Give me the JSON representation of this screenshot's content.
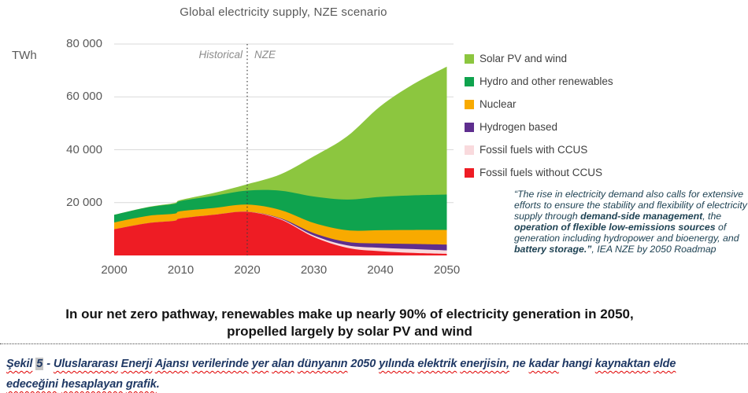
{
  "chart_data": {
    "type": "area",
    "stacked": true,
    "title": "Global electricity supply, NZE scenario",
    "y_unit_label": "TWh",
    "xlim": [
      2000,
      2050
    ],
    "ylim": [
      0,
      80000
    ],
    "grid": true,
    "legend_position": "right",
    "x": [
      2000,
      2005,
      2009,
      2010,
      2015,
      2020,
      2025,
      2030,
      2035,
      2040,
      2045,
      2050
    ],
    "series": [
      {
        "name": "Fossil fuels without CCUS",
        "color": "#ee1c24",
        "values": [
          9900,
          12200,
          13100,
          14000,
          15400,
          16500,
          13600,
          7000,
          2900,
          1600,
          950,
          600
        ]
      },
      {
        "name": "Fossil fuels with CCUS",
        "color": "#f9dadd",
        "values": [
          0,
          0,
          0,
          0,
          0,
          40,
          250,
          550,
          950,
          1300,
          1450,
          1300
        ]
      },
      {
        "name": "Hydrogen based",
        "color": "#5e2e8e",
        "values": [
          0,
          0,
          0,
          0,
          0,
          0,
          250,
          900,
          1300,
          1650,
          1950,
          2200
        ]
      },
      {
        "name": "Nuclear",
        "color": "#f8aa00",
        "values": [
          2590,
          2770,
          2700,
          2760,
          2570,
          2690,
          3100,
          3850,
          4400,
          5000,
          5300,
          5550
        ]
      },
      {
        "name": "Hydro and other renewables",
        "color": "#0fa34e",
        "values": [
          2870,
          3200,
          3700,
          3850,
          4600,
          5300,
          7300,
          10000,
          11600,
          12600,
          13100,
          13400
        ]
      },
      {
        "name": "Solar PV and wind",
        "color": "#8cc63f",
        "values": [
          30,
          120,
          300,
          400,
          1100,
          2400,
          6200,
          15200,
          23900,
          34300,
          42100,
          48400
        ]
      }
    ],
    "x_ticks": [
      {
        "v": 2000,
        "label": "2000"
      },
      {
        "v": 2010,
        "label": "2010"
      },
      {
        "v": 2020,
        "label": "2020"
      },
      {
        "v": 2030,
        "label": "2030"
      },
      {
        "v": 2040,
        "label": "2040"
      },
      {
        "v": 2050,
        "label": "2050"
      }
    ],
    "y_ticks": [
      {
        "v": 20000,
        "label": "20 000"
      },
      {
        "v": 40000,
        "label": "40 000"
      },
      {
        "v": 60000,
        "label": "60 000"
      },
      {
        "v": 80000,
        "label": "80 000"
      }
    ],
    "divider": {
      "x": 2020,
      "left_label": "Historical",
      "right_label": "NZE"
    }
  },
  "quote": {
    "parts": [
      {
        "t": "“The rise in electricity demand also calls for extensive efforts to ensure the stability and flexibility of electricity supply through ",
        "b": false
      },
      {
        "t": "demand-side management",
        "b": true
      },
      {
        "t": ", the ",
        "b": false
      },
      {
        "t": "operation of flexible low-emissions sources",
        "b": true
      },
      {
        "t": " of generation including hydropower and bioenergy, and ",
        "b": false
      },
      {
        "t": "battery storage.”",
        "b": true
      },
      {
        "t": ", IEA NZE by 2050 Roadmap",
        "b": false
      }
    ]
  },
  "statement": {
    "line1": "In our net zero pathway, renewables make up nearly 90% of electricity generation in 2050,",
    "line2": "propelled largely by solar PV and wind"
  },
  "caption": {
    "lines": [
      [
        {
          "t": "Şekil",
          "sq": true
        },
        {
          "t": "5",
          "hl": true
        },
        {
          "t": "-"
        },
        {
          "t": "Uluslararası",
          "sq": true
        },
        {
          "t": "Enerji",
          "sq": true
        },
        {
          "t": "Ajansı",
          "sq": true
        },
        {
          "t": "verilerinde",
          "sq": true
        },
        {
          "t": "yer",
          "sq": true
        },
        {
          "t": "alan",
          "sq": true
        },
        {
          "t": "dünyanın",
          "sq": true
        },
        {
          "t": "2050"
        },
        {
          "t": "yılında",
          "sq": true
        },
        {
          "t": "elektrik",
          "sq": true
        },
        {
          "t": "enerjisin,",
          "sq": true
        },
        {
          "t": "ne"
        },
        {
          "t": "kadar",
          "sq": true
        },
        {
          "t": "hangi"
        },
        {
          "t": "kaynaktan",
          "sq": true
        },
        {
          "t": "elde",
          "sq": true
        }
      ],
      [
        {
          "t": "edeceğini",
          "sq": true
        },
        {
          "t": "hesaplayan",
          "sq": true
        },
        {
          "t": "grafik",
          "sq": true
        },
        {
          "t": ".",
          "glue": true
        }
      ]
    ]
  },
  "colors": {
    "grid": "#d9d9d9",
    "divider_line": "#3c3c3c",
    "axis_text": "#595959",
    "legend_text": "#404040",
    "quote_text": "#1e4253",
    "caption_text": "#1f3864",
    "squiggle": "#e00000",
    "highlight": "#c4c4c4"
  }
}
